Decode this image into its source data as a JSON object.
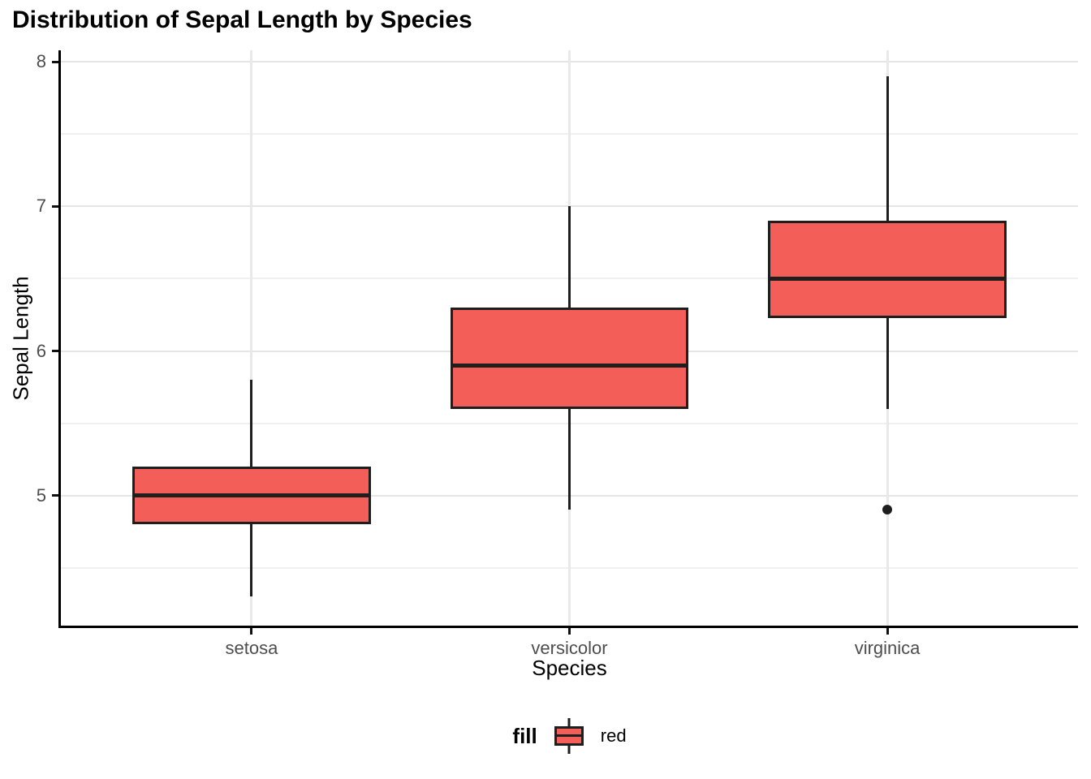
{
  "chart_data": {
    "type": "boxplot",
    "title": "Distribution of Sepal Length by Species",
    "xlabel": "Species",
    "ylabel": "Sepal Length",
    "categories": [
      "setosa",
      "versicolor",
      "virginica"
    ],
    "series": [
      {
        "category": "setosa",
        "min": 4.3,
        "q1": 4.8,
        "median": 5.0,
        "q3": 5.2,
        "max": 5.8,
        "outliers": []
      },
      {
        "category": "versicolor",
        "min": 4.9,
        "q1": 5.6,
        "median": 5.9,
        "q3": 6.3,
        "max": 7.0,
        "outliers": []
      },
      {
        "category": "virginica",
        "min": 5.6,
        "q1": 6.225,
        "median": 6.5,
        "q3": 6.9,
        "max": 7.9,
        "outliers": [
          4.9
        ]
      }
    ],
    "ylim": [
      4.1,
      8.08
    ],
    "yticks": [
      5,
      6,
      7,
      8
    ],
    "yticks_minor": [
      4.5,
      5.5,
      6.5,
      7.5
    ],
    "x_range": [
      0.4,
      3.6
    ],
    "box_width_units": 0.75,
    "grid": true,
    "legend_position": "bottom",
    "colors": {
      "box_fill": "#F35E58",
      "box_border": "#1E1E1E",
      "grid_major": "#E5E5E5",
      "grid_minor": "#F0F0F0",
      "axis_line": "#000000",
      "tick_label": "#4D4D4D"
    }
  },
  "legend": {
    "title": "fill",
    "items": [
      {
        "label": "red"
      }
    ]
  }
}
